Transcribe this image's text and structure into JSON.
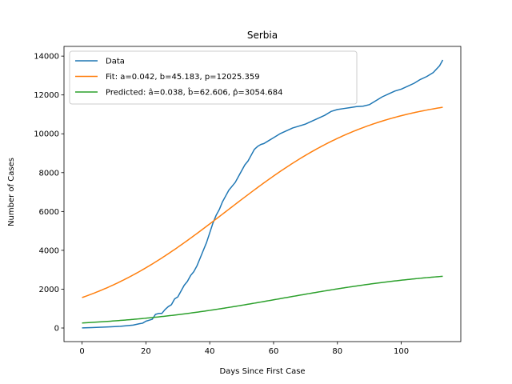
{
  "chart_data": {
    "type": "line",
    "title": "Serbia",
    "xlabel": "Days Since First Case",
    "ylabel": "Number of Cases",
    "xlim": [
      -5.65,
      118.65
    ],
    "ylim": [
      -700,
      14500
    ],
    "xticks": [
      0,
      20,
      40,
      60,
      80,
      100
    ],
    "yticks": [
      0,
      2000,
      4000,
      6000,
      8000,
      10000,
      12000,
      14000
    ],
    "grid": false,
    "legend": "upper-left",
    "series": [
      {
        "name": "Data",
        "color": "#1f77b4",
        "x": [
          0,
          3,
          6,
          9,
          12,
          14,
          16,
          18,
          19,
          20,
          21,
          22,
          23,
          24,
          25,
          26,
          27,
          28,
          29,
          30,
          31,
          32,
          33,
          34,
          35,
          36,
          37,
          38,
          39,
          40,
          41,
          42,
          43,
          44,
          45,
          46,
          47,
          48,
          49,
          50,
          51,
          52,
          53,
          54,
          55,
          56,
          57,
          58,
          60,
          62,
          64,
          66,
          68,
          70,
          72,
          74,
          76,
          78,
          80,
          82,
          84,
          86,
          88,
          90,
          92,
          94,
          96,
          98,
          100,
          102,
          104,
          106,
          108,
          110,
          112,
          113
        ],
        "y": [
          5,
          20,
          40,
          60,
          90,
          120,
          150,
          220,
          250,
          350,
          400,
          450,
          700,
          750,
          750,
          950,
          1100,
          1200,
          1500,
          1600,
          1900,
          2200,
          2400,
          2700,
          2900,
          3200,
          3600,
          4000,
          4400,
          4900,
          5400,
          5800,
          6100,
          6500,
          6800,
          7100,
          7300,
          7500,
          7800,
          8100,
          8400,
          8600,
          8900,
          9200,
          9350,
          9450,
          9500,
          9600,
          9800,
          10000,
          10150,
          10300,
          10400,
          10500,
          10650,
          10800,
          10950,
          11150,
          11250,
          11300,
          11350,
          11400,
          11420,
          11500,
          11700,
          11900,
          12050,
          12200,
          12300,
          12450,
          12600,
          12800,
          12950,
          13150,
          13500,
          13800
        ]
      },
      {
        "name": "Fit: a=0.042, b=45.183, p=12025.359",
        "color": "#ff7f0e",
        "model": {
          "a": 0.042,
          "b": 45.183,
          "p": 12025.359
        }
      },
      {
        "name": "Predicted: â=0.038, b̂=62.606, p̂=3054.684",
        "color": "#2ca02c",
        "model": {
          "a": 0.038,
          "b": 62.606,
          "p": 3054.684
        }
      }
    ]
  }
}
